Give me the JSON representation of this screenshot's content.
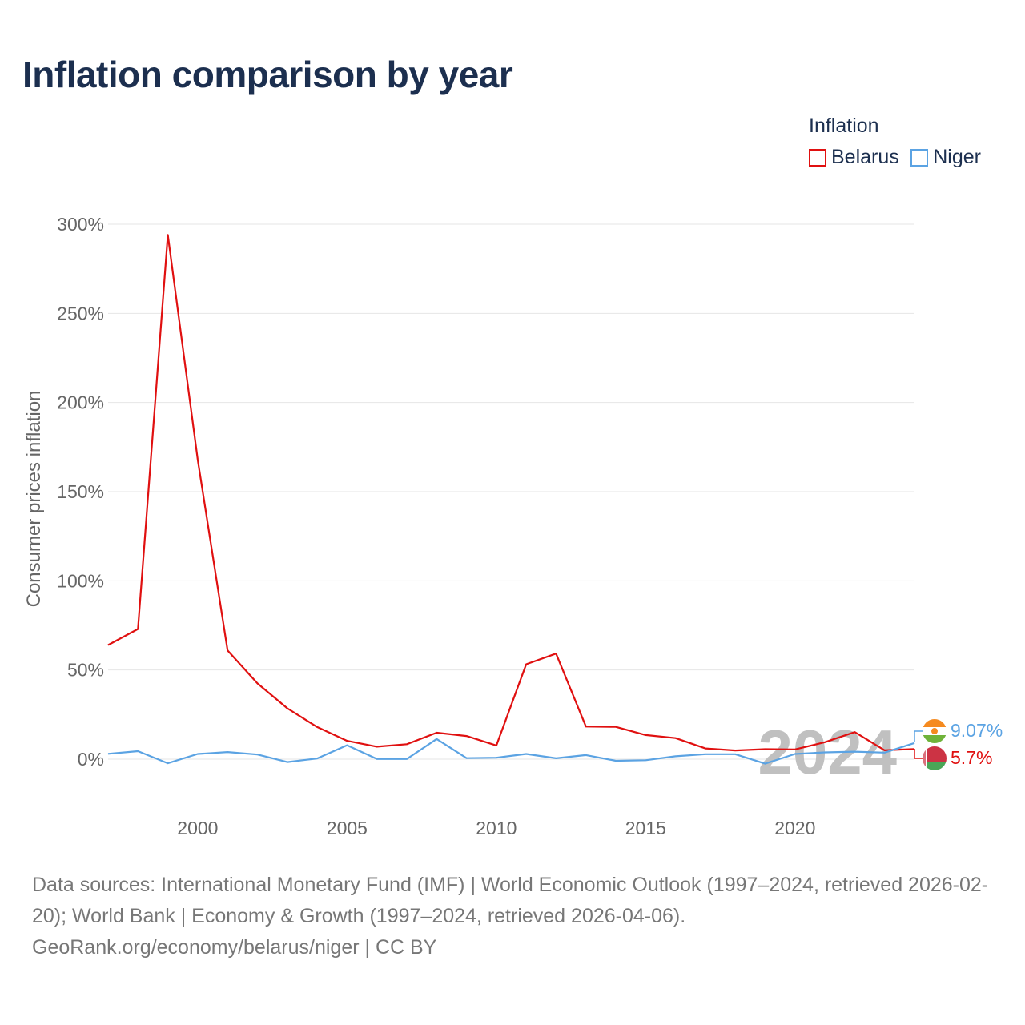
{
  "title": "Inflation comparison by year",
  "legend": {
    "title": "Inflation",
    "items": [
      {
        "name": "Belarus",
        "color": "#e01010"
      },
      {
        "name": "Niger",
        "color": "#5ba3e3"
      }
    ]
  },
  "chart_data": {
    "type": "line",
    "title": "Inflation comparison by year",
    "xlabel": "",
    "ylabel": "Consumer prices inflation",
    "xlim": [
      1997,
      2024
    ],
    "ylim": [
      -20,
      300
    ],
    "yticks": [
      0,
      50,
      100,
      150,
      200,
      250,
      300
    ],
    "ytick_labels": [
      "0%",
      "50%",
      "100%",
      "150%",
      "200%",
      "250%",
      "300%"
    ],
    "xticks": [
      2000,
      2005,
      2010,
      2015,
      2020
    ],
    "xtick_labels": [
      "2000",
      "2005",
      "2010",
      "2015",
      "2020"
    ],
    "grid": true,
    "legend_position": "top-right",
    "x": [
      1997,
      1998,
      1999,
      2000,
      2001,
      2002,
      2003,
      2004,
      2005,
      2006,
      2007,
      2008,
      2009,
      2010,
      2011,
      2012,
      2013,
      2014,
      2015,
      2016,
      2017,
      2018,
      2019,
      2020,
      2021,
      2022,
      2023,
      2024
    ],
    "series": [
      {
        "name": "Belarus",
        "color": "#e01010",
        "values": [
          64,
          73,
          294,
          168,
          61,
          42.5,
          28.5,
          18,
          10.3,
          7,
          8.4,
          14.8,
          13,
          7.7,
          53.2,
          59.2,
          18.3,
          18.1,
          13.5,
          11.8,
          6,
          4.9,
          5.6,
          5.5,
          9.5,
          15.2,
          5,
          5.7
        ]
      },
      {
        "name": "Niger",
        "color": "#5ba3e3",
        "values": [
          3,
          4.5,
          -2.3,
          2.9,
          4,
          2.6,
          -1.6,
          0.4,
          7.8,
          0.1,
          0.1,
          11.3,
          0.6,
          0.8,
          2.9,
          0.5,
          2.3,
          -0.9,
          -0.6,
          1.6,
          2.8,
          2.8,
          -2.5,
          2.9,
          3.8,
          4.2,
          3.7,
          9.07
        ]
      }
    ],
    "annotation": "2024",
    "end_labels": [
      {
        "series": "Niger",
        "text": "9.07%",
        "color": "#5ba3e3"
      },
      {
        "series": "Belarus",
        "text": "5.7%",
        "color": "#e01010"
      }
    ]
  },
  "footer": {
    "sources": "Data sources: International Monetary Fund (IMF) | World Economic Outlook (1997–2024, retrieved 2026-02-20); World Bank | Economy & Growth (1997–2024, retrieved 2026-04-06).",
    "credit": "GeoRank.org/economy/belarus/niger | CC BY"
  }
}
